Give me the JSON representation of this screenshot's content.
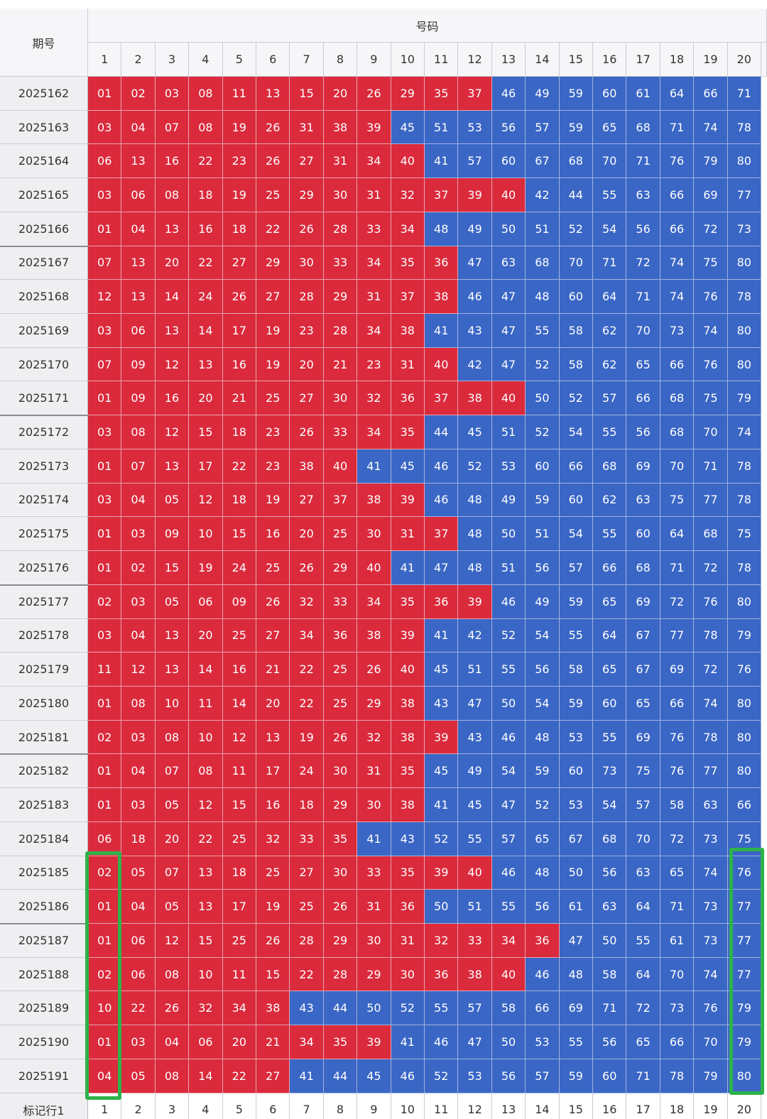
{
  "table": {
    "header": {
      "period": "期号",
      "numbers": "号码",
      "columns": [
        "1",
        "2",
        "3",
        "4",
        "5",
        "6",
        "7",
        "8",
        "9",
        "10",
        "11",
        "12",
        "13",
        "14",
        "15",
        "16",
        "17",
        "18",
        "19",
        "20"
      ]
    },
    "rows": [
      {
        "period": "2025162",
        "values": [
          "01",
          "02",
          "03",
          "08",
          "11",
          "13",
          "15",
          "20",
          "26",
          "29",
          "35",
          "37",
          "46",
          "49",
          "59",
          "60",
          "61",
          "64",
          "66",
          "71"
        ]
      },
      {
        "period": "2025163",
        "values": [
          "03",
          "04",
          "07",
          "08",
          "19",
          "26",
          "31",
          "38",
          "39",
          "45",
          "51",
          "53",
          "56",
          "57",
          "59",
          "65",
          "68",
          "71",
          "74",
          "78"
        ]
      },
      {
        "period": "2025164",
        "values": [
          "06",
          "13",
          "16",
          "22",
          "23",
          "26",
          "27",
          "31",
          "34",
          "40",
          "41",
          "57",
          "60",
          "67",
          "68",
          "70",
          "71",
          "76",
          "79",
          "80"
        ]
      },
      {
        "period": "2025165",
        "values": [
          "03",
          "06",
          "08",
          "18",
          "19",
          "25",
          "29",
          "30",
          "31",
          "32",
          "37",
          "39",
          "40",
          "42",
          "44",
          "55",
          "63",
          "66",
          "69",
          "77"
        ]
      },
      {
        "period": "2025166",
        "values": [
          "01",
          "04",
          "13",
          "16",
          "18",
          "22",
          "26",
          "28",
          "33",
          "34",
          "48",
          "49",
          "50",
          "51",
          "52",
          "54",
          "56",
          "66",
          "72",
          "73"
        ]
      },
      {
        "period": "2025167",
        "values": [
          "07",
          "13",
          "20",
          "22",
          "27",
          "29",
          "30",
          "33",
          "34",
          "35",
          "36",
          "47",
          "63",
          "68",
          "70",
          "71",
          "72",
          "74",
          "75",
          "80"
        ]
      },
      {
        "period": "2025168",
        "values": [
          "12",
          "13",
          "14",
          "24",
          "26",
          "27",
          "28",
          "29",
          "31",
          "37",
          "38",
          "46",
          "47",
          "48",
          "60",
          "64",
          "71",
          "74",
          "76",
          "78"
        ]
      },
      {
        "period": "2025169",
        "values": [
          "03",
          "06",
          "13",
          "14",
          "17",
          "19",
          "23",
          "28",
          "34",
          "38",
          "41",
          "43",
          "47",
          "55",
          "58",
          "62",
          "70",
          "73",
          "74",
          "80"
        ]
      },
      {
        "period": "2025170",
        "values": [
          "07",
          "09",
          "12",
          "13",
          "16",
          "19",
          "20",
          "21",
          "23",
          "31",
          "40",
          "42",
          "47",
          "52",
          "58",
          "62",
          "65",
          "66",
          "76",
          "80"
        ]
      },
      {
        "period": "2025171",
        "values": [
          "01",
          "09",
          "16",
          "20",
          "21",
          "25",
          "27",
          "30",
          "32",
          "36",
          "37",
          "38",
          "40",
          "50",
          "52",
          "57",
          "66",
          "68",
          "75",
          "79"
        ]
      },
      {
        "period": "2025172",
        "values": [
          "03",
          "08",
          "12",
          "15",
          "18",
          "23",
          "26",
          "33",
          "34",
          "35",
          "44",
          "45",
          "51",
          "52",
          "54",
          "55",
          "56",
          "68",
          "70",
          "74"
        ]
      },
      {
        "period": "2025173",
        "values": [
          "01",
          "07",
          "13",
          "17",
          "22",
          "23",
          "38",
          "40",
          "41",
          "45",
          "46",
          "52",
          "53",
          "60",
          "66",
          "68",
          "69",
          "70",
          "71",
          "78"
        ]
      },
      {
        "period": "2025174",
        "values": [
          "03",
          "04",
          "05",
          "12",
          "18",
          "19",
          "27",
          "37",
          "38",
          "39",
          "46",
          "48",
          "49",
          "59",
          "60",
          "62",
          "63",
          "75",
          "77",
          "78"
        ]
      },
      {
        "period": "2025175",
        "values": [
          "01",
          "03",
          "09",
          "10",
          "15",
          "16",
          "20",
          "25",
          "30",
          "31",
          "37",
          "48",
          "50",
          "51",
          "54",
          "55",
          "60",
          "64",
          "68",
          "75"
        ]
      },
      {
        "period": "2025176",
        "values": [
          "01",
          "02",
          "15",
          "19",
          "24",
          "25",
          "26",
          "29",
          "40",
          "41",
          "47",
          "48",
          "51",
          "56",
          "57",
          "66",
          "68",
          "71",
          "72",
          "78"
        ]
      },
      {
        "period": "2025177",
        "values": [
          "02",
          "03",
          "05",
          "06",
          "09",
          "26",
          "32",
          "33",
          "34",
          "35",
          "36",
          "39",
          "46",
          "49",
          "59",
          "65",
          "69",
          "72",
          "76",
          "80"
        ]
      },
      {
        "period": "2025178",
        "values": [
          "03",
          "04",
          "13",
          "20",
          "25",
          "27",
          "34",
          "36",
          "38",
          "39",
          "41",
          "42",
          "52",
          "54",
          "55",
          "64",
          "67",
          "77",
          "78",
          "79"
        ]
      },
      {
        "period": "2025179",
        "values": [
          "11",
          "12",
          "13",
          "14",
          "16",
          "21",
          "22",
          "25",
          "26",
          "40",
          "45",
          "51",
          "55",
          "56",
          "58",
          "65",
          "67",
          "69",
          "72",
          "76"
        ]
      },
      {
        "period": "2025180",
        "values": [
          "01",
          "08",
          "10",
          "11",
          "14",
          "20",
          "22",
          "25",
          "29",
          "38",
          "43",
          "47",
          "50",
          "54",
          "59",
          "60",
          "65",
          "66",
          "74",
          "80"
        ]
      },
      {
        "period": "2025181",
        "values": [
          "02",
          "03",
          "08",
          "10",
          "12",
          "13",
          "19",
          "26",
          "32",
          "38",
          "39",
          "43",
          "46",
          "48",
          "53",
          "55",
          "69",
          "76",
          "78",
          "80"
        ]
      },
      {
        "period": "2025182",
        "values": [
          "01",
          "04",
          "07",
          "08",
          "11",
          "17",
          "24",
          "30",
          "31",
          "35",
          "45",
          "49",
          "54",
          "59",
          "60",
          "73",
          "75",
          "76",
          "77",
          "80"
        ]
      },
      {
        "period": "2025183",
        "values": [
          "01",
          "03",
          "05",
          "12",
          "15",
          "16",
          "18",
          "29",
          "30",
          "38",
          "41",
          "45",
          "47",
          "52",
          "53",
          "54",
          "57",
          "58",
          "63",
          "66"
        ]
      },
      {
        "period": "2025184",
        "values": [
          "06",
          "18",
          "20",
          "22",
          "25",
          "32",
          "33",
          "35",
          "41",
          "43",
          "52",
          "55",
          "57",
          "65",
          "67",
          "68",
          "70",
          "72",
          "73",
          "75"
        ]
      },
      {
        "period": "2025185",
        "values": [
          "02",
          "05",
          "07",
          "13",
          "18",
          "25",
          "27",
          "30",
          "33",
          "35",
          "39",
          "40",
          "46",
          "48",
          "50",
          "56",
          "63",
          "65",
          "74",
          "76"
        ]
      },
      {
        "period": "2025186",
        "values": [
          "01",
          "04",
          "05",
          "13",
          "17",
          "19",
          "25",
          "26",
          "31",
          "36",
          "50",
          "51",
          "55",
          "56",
          "61",
          "63",
          "64",
          "71",
          "73",
          "77"
        ]
      },
      {
        "period": "2025187",
        "values": [
          "01",
          "06",
          "12",
          "15",
          "25",
          "26",
          "28",
          "29",
          "30",
          "31",
          "32",
          "33",
          "34",
          "36",
          "47",
          "50",
          "55",
          "61",
          "73",
          "77"
        ]
      },
      {
        "period": "2025188",
        "values": [
          "02",
          "06",
          "08",
          "10",
          "11",
          "15",
          "22",
          "28",
          "29",
          "30",
          "36",
          "38",
          "40",
          "46",
          "48",
          "58",
          "64",
          "70",
          "74",
          "77"
        ]
      },
      {
        "period": "2025189",
        "values": [
          "10",
          "22",
          "26",
          "32",
          "34",
          "38",
          "43",
          "44",
          "50",
          "52",
          "55",
          "57",
          "58",
          "66",
          "69",
          "71",
          "72",
          "73",
          "76",
          "79"
        ]
      },
      {
        "period": "2025190",
        "values": [
          "01",
          "03",
          "04",
          "06",
          "20",
          "21",
          "34",
          "35",
          "39",
          "41",
          "46",
          "47",
          "50",
          "53",
          "55",
          "56",
          "65",
          "66",
          "70",
          "79"
        ]
      },
      {
        "period": "2025191",
        "values": [
          "04",
          "05",
          "08",
          "14",
          "22",
          "27",
          "41",
          "44",
          "45",
          "46",
          "52",
          "53",
          "56",
          "57",
          "59",
          "60",
          "71",
          "78",
          "79",
          "80"
        ]
      }
    ],
    "footer": {
      "label": "标记行1",
      "columns": [
        "1",
        "2",
        "3",
        "4",
        "5",
        "6",
        "7",
        "8",
        "9",
        "10",
        "11",
        "12",
        "13",
        "14",
        "15",
        "16",
        "17",
        "18",
        "19",
        "20"
      ]
    }
  }
}
